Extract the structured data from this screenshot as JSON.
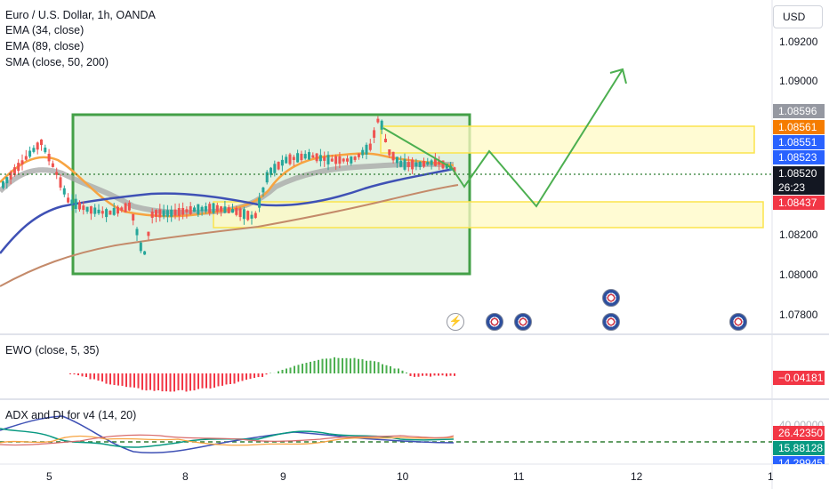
{
  "legend": {
    "symbol_title": "Euro / U.S. Dollar, 1h, OANDA",
    "ema34": "EMA (34, close)",
    "ema89": "EMA (89, close)",
    "sma": "SMA (close, 50, 200)"
  },
  "currency_button": "USD",
  "price_axis": [
    "1.09200",
    "1.09000",
    "1.08200",
    "1.08000",
    "1.07800"
  ],
  "price_labels": [
    {
      "text": "1.08596",
      "color": "#9598a1"
    },
    {
      "text": "1.08561",
      "color": "#f57c00"
    },
    {
      "text": "1.08551",
      "color": "#2962ff"
    },
    {
      "text": "1.08523",
      "color": "#2962ff"
    },
    {
      "text": "1.08520",
      "color": "#131722"
    },
    {
      "text": "26:23",
      "color": "#131722"
    },
    {
      "text": "1.08437",
      "color": "#f23645"
    }
  ],
  "ewo": {
    "title": "EWO (close, 5, 35)",
    "value": "−0.04181",
    "color": "#f23645"
  },
  "adx": {
    "title": "ADX and DI for v4 (14, 20)",
    "values": [
      {
        "text": "26.42350",
        "color": "#f23645"
      },
      {
        "text": "15.88128",
        "color": "#089981"
      },
      {
        "text": "14.29945",
        "color": "#2962ff"
      }
    ],
    "top_tick": "40.00000"
  },
  "time_axis": [
    "5",
    "8",
    "9",
    "10",
    "11",
    "12",
    "1"
  ],
  "colors": {
    "up": "#26a69a",
    "down": "#ef5350",
    "ema34": "#f7a441",
    "ema89": "#3f51b5",
    "sma50": "#a5a5a5",
    "sma200": "#c48a6a",
    "box_green": "#43a047",
    "zone_yellow": "#fff59d",
    "projection": "#4caf50"
  },
  "events": [
    "bolt-icon",
    "us-flag-icon",
    "us-flag-icon",
    "us-flag-icon",
    "us-flag-icon",
    "us-flag-icon"
  ]
}
